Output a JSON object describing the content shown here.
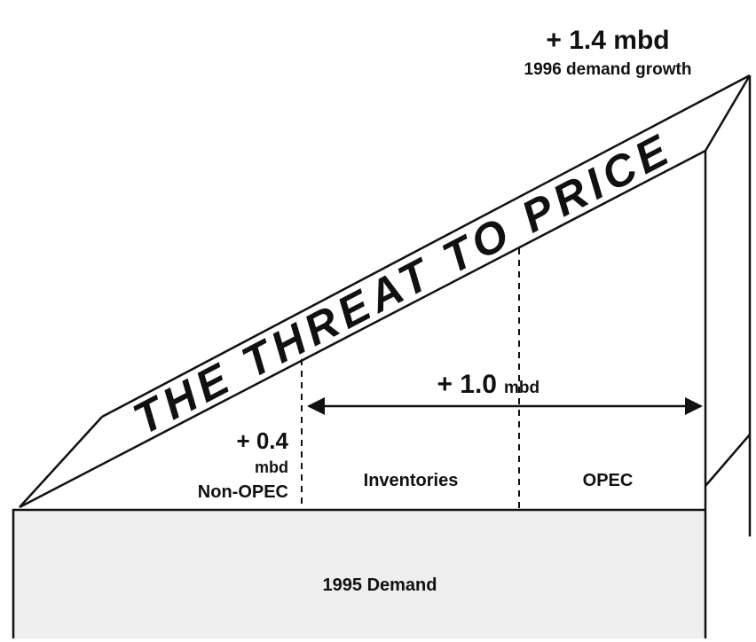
{
  "header": {
    "value": "+ 1.4 mbd",
    "caption": "1996 demand growth"
  },
  "band": {
    "label": "THE THREAT TO PRICE"
  },
  "arrow": {
    "value": "+ 1.0",
    "unit": "mbd"
  },
  "segments": {
    "non_opec": {
      "value": "+ 0.4",
      "unit": "mbd",
      "label": "Non-OPEC"
    },
    "inventories": {
      "label": "Inventories"
    },
    "opec": {
      "label": "OPEC"
    }
  },
  "base": {
    "label": "1995 Demand"
  }
}
